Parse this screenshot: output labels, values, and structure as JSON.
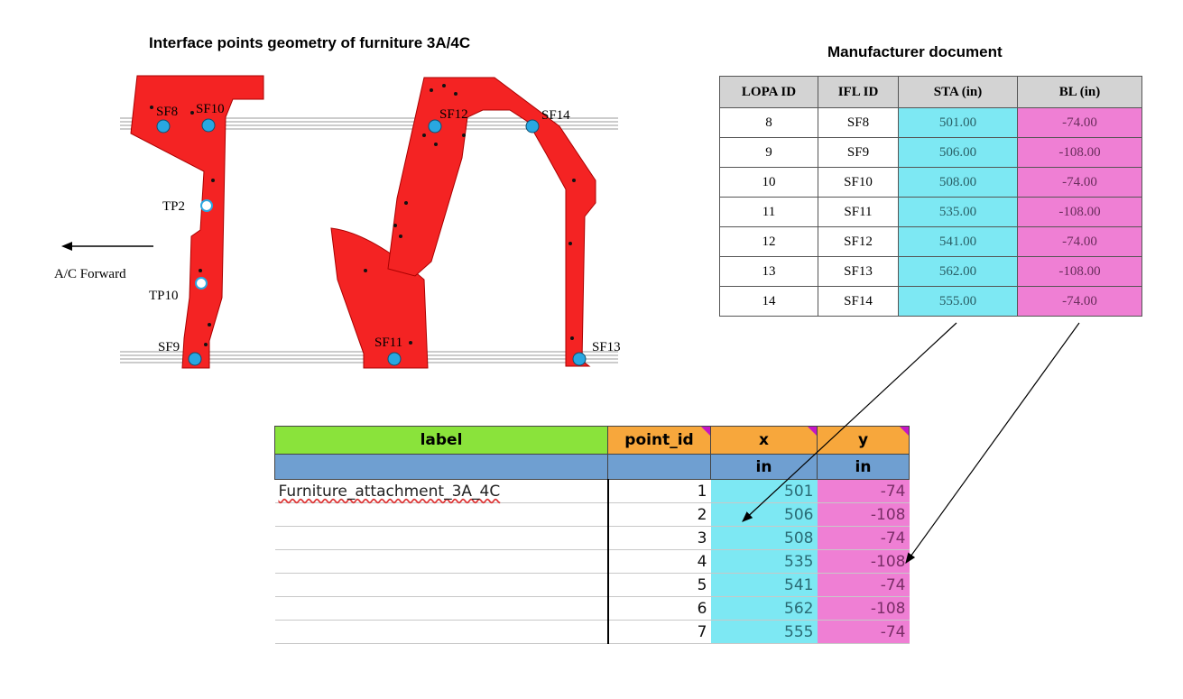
{
  "titles": {
    "geometry": "Interface points geometry of furniture 3A/4C",
    "document": "Manufacturer document"
  },
  "drawing": {
    "point_labels": [
      "SF8",
      "SF10",
      "TP2",
      "TP10",
      "SF9",
      "SF11",
      "SF12",
      "SF14",
      "SF13"
    ],
    "direction_label": "A/C Forward",
    "colors": {
      "furniture": "#f42323",
      "attach": "#29a7e1",
      "rail": "#888888"
    }
  },
  "doc_table": {
    "headers": [
      "LOPA ID",
      "IFL ID",
      "STA (in)",
      "BL (in)"
    ],
    "rows": [
      [
        "8",
        "SF8",
        "501.00",
        "-74.00"
      ],
      [
        "9",
        "SF9",
        "506.00",
        "-108.00"
      ],
      [
        "10",
        "SF10",
        "508.00",
        "-74.00"
      ],
      [
        "11",
        "SF11",
        "535.00",
        "-108.00"
      ],
      [
        "12",
        "SF12",
        "541.00",
        "-74.00"
      ],
      [
        "13",
        "SF13",
        "562.00",
        "-108.00"
      ],
      [
        "14",
        "SF14",
        "555.00",
        "-74.00"
      ]
    ]
  },
  "sheet": {
    "headers": [
      "label",
      "point_id",
      "x",
      "y"
    ],
    "units": [
      "",
      "",
      "in",
      "in"
    ],
    "rows": [
      [
        "Furniture_attachment_3A_4C",
        "1",
        "501",
        "-74"
      ],
      [
        "",
        "2",
        "506",
        "-108"
      ],
      [
        "",
        "3",
        "508",
        "-74"
      ],
      [
        "",
        "4",
        "535",
        "-108"
      ],
      [
        "",
        "5",
        "541",
        "-74"
      ],
      [
        "",
        "6",
        "562",
        "-108"
      ],
      [
        "",
        "7",
        "555",
        "-74"
      ]
    ]
  }
}
